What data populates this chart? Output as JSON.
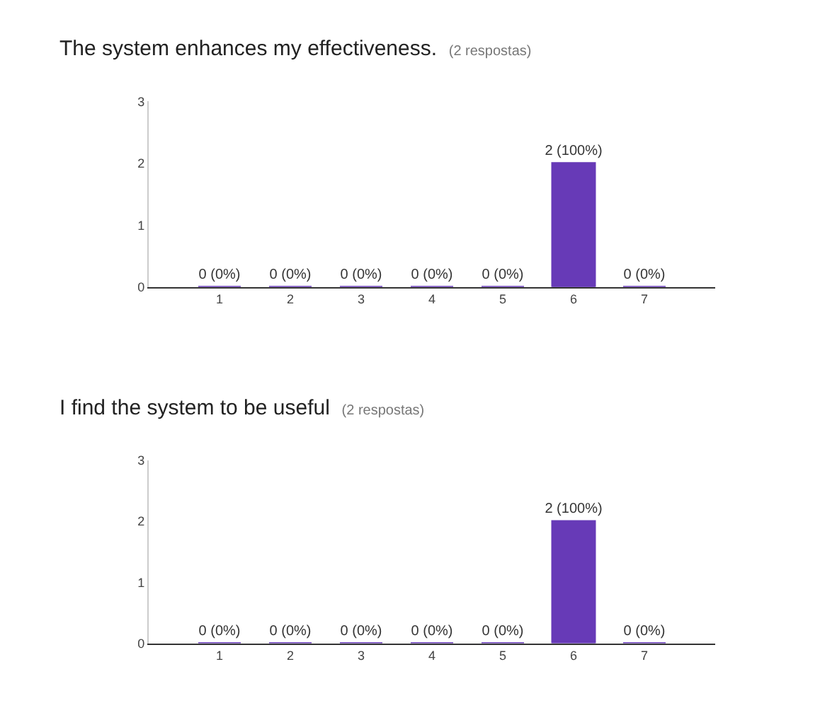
{
  "chart_data": [
    {
      "type": "bar",
      "title": "The system enhances my effectiveness.",
      "subtitle": "(2 respostas)",
      "categories": [
        "1",
        "2",
        "3",
        "4",
        "5",
        "6",
        "7"
      ],
      "values": [
        0,
        0,
        0,
        0,
        0,
        2,
        0
      ],
      "value_labels": [
        "0 (0%)",
        "0 (0%)",
        "0 (0%)",
        "0 (0%)",
        "0 (0%)",
        "2 (100%)",
        "0 (0%)"
      ],
      "color": "#673ab7",
      "ylim": [
        0,
        3
      ],
      "yticks": [
        0,
        1,
        2,
        3
      ]
    },
    {
      "type": "bar",
      "title": "I find the system to be useful",
      "subtitle": "(2 respostas)",
      "categories": [
        "1",
        "2",
        "3",
        "4",
        "5",
        "6",
        "7"
      ],
      "values": [
        0,
        0,
        0,
        0,
        0,
        2,
        0
      ],
      "value_labels": [
        "0 (0%)",
        "0 (0%)",
        "0 (0%)",
        "0 (0%)",
        "0 (0%)",
        "2 (100%)",
        "0 (0%)"
      ],
      "color": "#673ab7",
      "ylim": [
        0,
        3
      ],
      "yticks": [
        0,
        1,
        2,
        3
      ]
    }
  ]
}
